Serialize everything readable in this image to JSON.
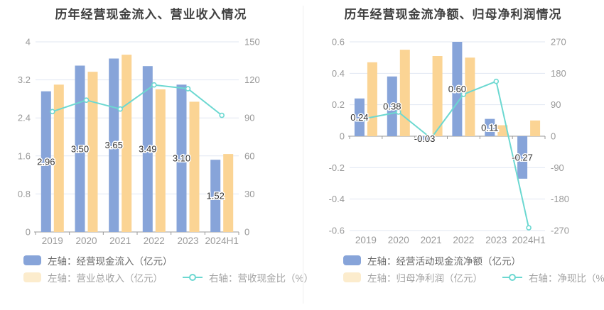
{
  "colors": {
    "bar_blue": "#87a4d9",
    "bar_yellow": "#fbd494",
    "legend_yellow": "#fceccd",
    "line_teal": "#6cd8d1",
    "grid": "#e1e7f2",
    "axis": "#999999",
    "tick_text": "#999999",
    "category_text": "#999999",
    "value_text": "#333333",
    "title_text": "#404040",
    "legend_text_primary": "#666666",
    "legend_text_secondary": "#a3a3a3"
  },
  "chart_data": [
    {
      "type": "bar",
      "subtype": "bar-line-combo",
      "title": "历年经营现金流入、营业收入情况",
      "categories": [
        "2019",
        "2020",
        "2021",
        "2022",
        "2023",
        "2024H1"
      ],
      "left_axis": {
        "min": 0,
        "max": 4,
        "step": 0.8,
        "ticks": [
          0,
          0.8,
          1.6,
          2.4,
          3.2,
          4
        ]
      },
      "right_axis": {
        "min": 0,
        "max": 150,
        "step": 30,
        "ticks": [
          0,
          30,
          60,
          90,
          120,
          150
        ]
      },
      "grid": true,
      "legend_position": "bottom",
      "series": [
        {
          "name": "左轴：经营现金流入（亿元）",
          "type": "bar",
          "axis": "left",
          "color": "#87a4d9",
          "values": [
            2.96,
            3.5,
            3.65,
            3.49,
            3.1,
            1.52
          ],
          "value_labels": [
            "2.96",
            "3.50",
            "3.65",
            "3.49",
            "3.10",
            "1.52"
          ]
        },
        {
          "name": "左轴：营业总收入（亿元）",
          "type": "bar",
          "axis": "left",
          "color": "#fbd494",
          "legend_color": "#fceccd",
          "values": [
            3.1,
            3.37,
            3.73,
            3.0,
            2.74,
            1.64
          ]
        },
        {
          "name": "右轴：营收现金比（%）",
          "type": "line",
          "axis": "right",
          "color": "#6cd8d1",
          "values": [
            95,
            104,
            97,
            116,
            113,
            92
          ]
        }
      ]
    },
    {
      "type": "bar",
      "subtype": "bar-line-combo",
      "title": "历年经营现金流净额、归母净利润情况",
      "categories": [
        "2019",
        "2020",
        "2021",
        "2022",
        "2023",
        "2024H1"
      ],
      "left_axis": {
        "min": -0.6,
        "max": 0.6,
        "step": 0.2,
        "ticks": [
          -0.6,
          -0.4,
          -0.2,
          0,
          0.2,
          0.4,
          0.6
        ]
      },
      "right_axis": {
        "min": -270,
        "max": 270,
        "step": 90,
        "ticks": [
          -270,
          -180,
          -90,
          0,
          90,
          180,
          270
        ]
      },
      "grid": true,
      "legend_position": "bottom",
      "series": [
        {
          "name": "左轴：经营活动现金流净额（亿元）",
          "type": "bar",
          "axis": "left",
          "color": "#87a4d9",
          "values": [
            0.24,
            0.38,
            -0.03,
            0.6,
            0.11,
            -0.27
          ],
          "value_labels": [
            "0.24",
            "0.38",
            "-0.03",
            "0.60",
            "0.11",
            "-0.27"
          ]
        },
        {
          "name": "左轴：归母净利润（亿元）",
          "type": "bar",
          "axis": "left",
          "color": "#fbd494",
          "legend_color": "#fceccd",
          "values": [
            0.47,
            0.55,
            0.51,
            0.5,
            0.07,
            0.1
          ]
        },
        {
          "name": "右轴：净现比（%）",
          "type": "line",
          "axis": "right",
          "color": "#6cd8d1",
          "values": [
            51,
            69,
            -6,
            120,
            157,
            -262
          ]
        }
      ]
    }
  ]
}
